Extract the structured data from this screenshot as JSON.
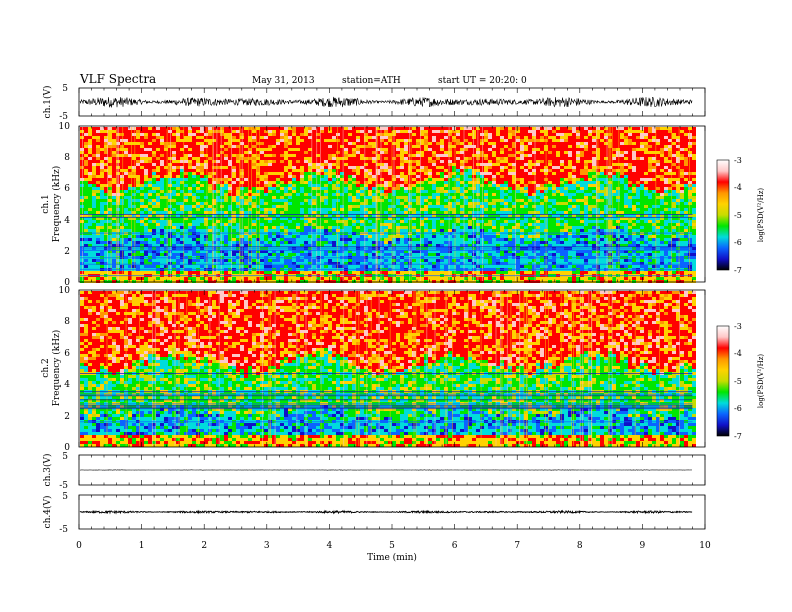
{
  "header": {
    "title": "VLF Spectra",
    "date": "May 31, 2013",
    "station": "station=ATH",
    "start": "start UT =  20:20: 0"
  },
  "chart_data": [
    {
      "type": "line",
      "ylabel": "ch.1(V)",
      "ylim": [
        -5,
        5
      ],
      "y_ticks": [
        "5",
        "-5"
      ],
      "series": [
        {
          "color": "#000000",
          "amplitude": 2.0,
          "baseline": 0.0
        }
      ]
    },
    {
      "type": "heatmap",
      "ylabel": "ch.1",
      "ylabel2": "Frequency (kHz)",
      "ylim": [
        0,
        10
      ],
      "y_ticks": [
        "0",
        "2",
        "4",
        "6",
        "8",
        "10"
      ],
      "boundary_khz": [
        6.5,
        3.2
      ],
      "colorbar": {
        "label": "log(PSD(V²/Hz)",
        "range": [
          -7,
          -3
        ],
        "ticks": [
          "-3",
          "-4",
          "-5",
          "-6",
          "-7"
        ]
      }
    },
    {
      "type": "heatmap",
      "ylabel": "ch.2",
      "ylabel2": "Frequency (kHz)",
      "ylim": [
        0,
        10
      ],
      "y_ticks": [
        "0",
        "2",
        "4",
        "6",
        "8",
        "10"
      ],
      "boundary_khz": [
        5.5,
        2.3
      ],
      "colorbar": {
        "label": "log(PSD(V²/Hz)",
        "range": [
          -7,
          -3
        ],
        "ticks": [
          "-3",
          "-4",
          "-5",
          "-6",
          "-7"
        ]
      }
    },
    {
      "type": "line",
      "ylabel": "ch.3(V)",
      "ylim": [
        -5,
        5
      ],
      "y_ticks": [
        "5",
        "-5"
      ],
      "series": [
        {
          "color": "#000000",
          "amplitude": 0.08,
          "baseline": 0.0
        }
      ]
    },
    {
      "type": "line",
      "ylabel": "ch.4(V)",
      "ylim": [
        -5,
        5
      ],
      "y_ticks": [
        "5",
        "-5"
      ],
      "series": [
        {
          "color": "#000000",
          "amplitude": 0.35,
          "baseline": 0.0
        }
      ]
    }
  ],
  "x_axis": {
    "label": "Time (min)",
    "xlim": [
      0,
      10
    ],
    "ticks": [
      "0",
      "1",
      "2",
      "3",
      "4",
      "5",
      "6",
      "7",
      "8",
      "9",
      "10"
    ],
    "data_end": 9.8
  },
  "colorscale": [
    "#000000",
    "#1010c8",
    "#0a64ff",
    "#00dcdc",
    "#00e600",
    "#c8dc00",
    "#ffd200",
    "#ff9600",
    "#ff0000",
    "#ffc8c8",
    "#ffffff"
  ]
}
